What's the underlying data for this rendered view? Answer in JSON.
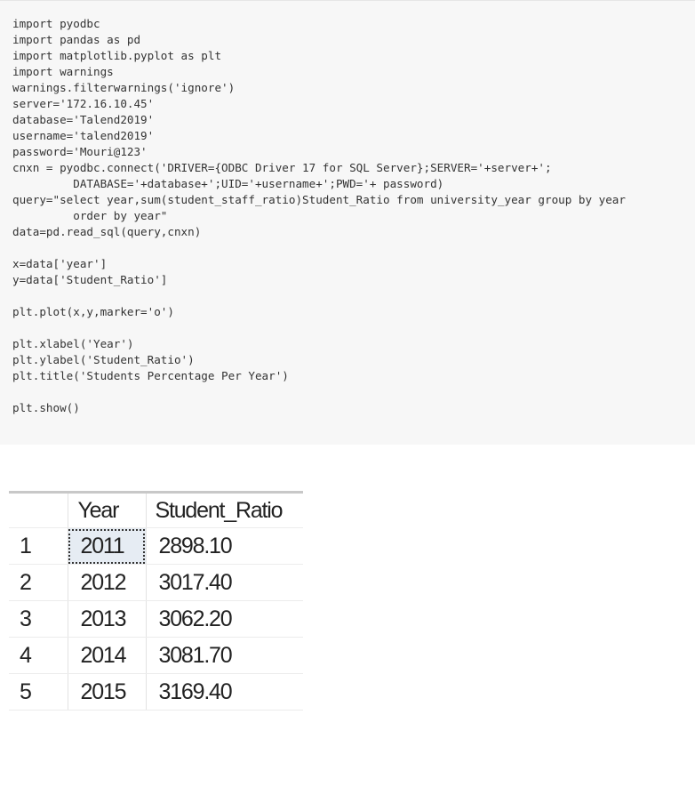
{
  "code_lines": [
    "import pyodbc",
    "import pandas as pd",
    "import matplotlib.pyplot as plt",
    "import warnings",
    "warnings.filterwarnings('ignore')",
    "server='172.16.10.45'",
    "database='Talend2019'",
    "username='talend2019'",
    "password='Mouri@123'",
    "cnxn = pyodbc.connect('DRIVER={ODBC Driver 17 for SQL Server};SERVER='+server+';",
    "         DATABASE='+database+';UID='+username+';PWD='+ password)",
    "query=\"select year,sum(student_staff_ratio)Student_Ratio from university_year group by year",
    "         order by year\"",
    "data=pd.read_sql(query,cnxn)",
    "",
    "x=data['year']",
    "y=data['Student_Ratio']",
    "",
    "plt.plot(x,y,marker='o')",
    "",
    "plt.xlabel('Year')",
    "plt.ylabel('Student_Ratio')",
    "plt.title('Students Percentage Per Year')",
    "",
    "plt.show()"
  ],
  "results": {
    "headers": [
      "",
      "Year",
      "Student_Ratio"
    ],
    "rows": [
      [
        "1",
        "2011",
        "2898.10"
      ],
      [
        "2",
        "2012",
        "3017.40"
      ],
      [
        "3",
        "2013",
        "3062.20"
      ],
      [
        "4",
        "2014",
        "3081.70"
      ],
      [
        "5",
        "2015",
        "3169.40"
      ]
    ]
  }
}
